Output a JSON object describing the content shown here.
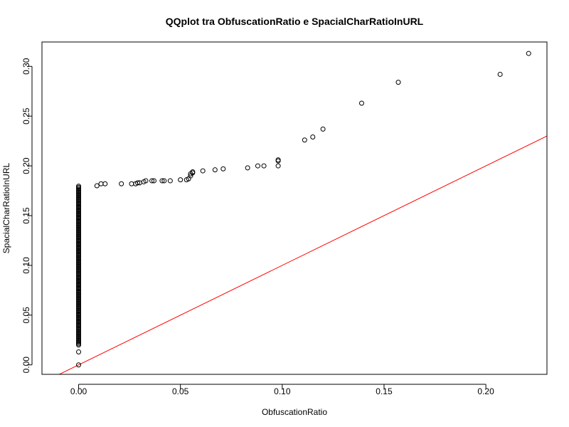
{
  "chart_data": {
    "type": "scatter",
    "title": "QQplot tra ObfuscationRatio e SpacialCharRatioInURL",
    "xlabel": "ObfuscationRatio",
    "ylabel": "SpacialCharRatioInURL",
    "xlim": [
      -0.018,
      0.23
    ],
    "ylim": [
      -0.0095,
      0.3245
    ],
    "x_ticks": [
      0.0,
      0.05,
      0.1,
      0.15,
      0.2
    ],
    "x_tick_labels": [
      "0.00",
      "0.05",
      "0.10",
      "0.15",
      "0.20"
    ],
    "y_ticks": [
      0.0,
      0.05,
      0.1,
      0.15,
      0.2,
      0.25,
      0.3
    ],
    "y_tick_labels": [
      "0.00",
      "0.05",
      "0.10",
      "0.15",
      "0.20",
      "0.25",
      "0.30"
    ],
    "grid": false,
    "point_color": "#000000",
    "reference_line": {
      "color": "#ff0000",
      "intercept": 0,
      "slope": 1
    },
    "zero_column": {
      "x": 0.0,
      "y_from": 0.02,
      "y_to": 0.18,
      "extra_y": [
        0.0,
        0.013
      ]
    },
    "points": [
      [
        0.009,
        0.18
      ],
      [
        0.011,
        0.182
      ],
      [
        0.013,
        0.182
      ],
      [
        0.021,
        0.182
      ],
      [
        0.026,
        0.182
      ],
      [
        0.028,
        0.182
      ],
      [
        0.029,
        0.183
      ],
      [
        0.03,
        0.183
      ],
      [
        0.032,
        0.184
      ],
      [
        0.033,
        0.185
      ],
      [
        0.036,
        0.185
      ],
      [
        0.037,
        0.185
      ],
      [
        0.041,
        0.185
      ],
      [
        0.042,
        0.185
      ],
      [
        0.045,
        0.185
      ],
      [
        0.05,
        0.186
      ],
      [
        0.053,
        0.186
      ],
      [
        0.054,
        0.187
      ],
      [
        0.055,
        0.19
      ],
      [
        0.055,
        0.192
      ],
      [
        0.056,
        0.193
      ],
      [
        0.056,
        0.194
      ],
      [
        0.061,
        0.195
      ],
      [
        0.067,
        0.196
      ],
      [
        0.071,
        0.197
      ],
      [
        0.083,
        0.198
      ],
      [
        0.088,
        0.2
      ],
      [
        0.091,
        0.2
      ],
      [
        0.098,
        0.2
      ],
      [
        0.098,
        0.205
      ],
      [
        0.098,
        0.206
      ],
      [
        0.111,
        0.226
      ],
      [
        0.115,
        0.229
      ],
      [
        0.12,
        0.237
      ],
      [
        0.139,
        0.263
      ],
      [
        0.157,
        0.284
      ],
      [
        0.207,
        0.292
      ],
      [
        0.221,
        0.313
      ]
    ]
  }
}
